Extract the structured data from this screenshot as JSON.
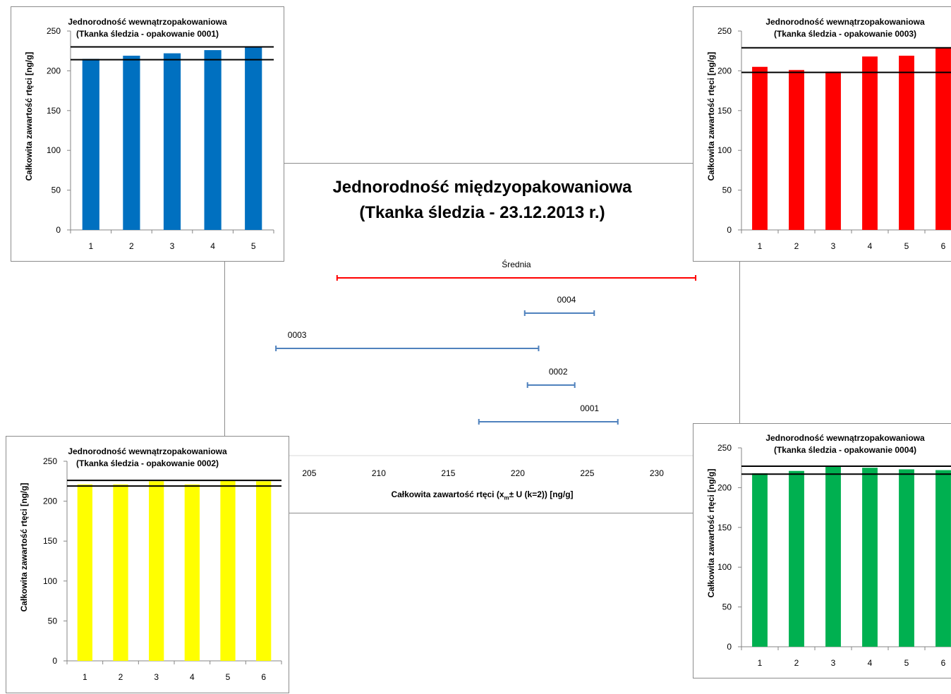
{
  "main": {
    "title_line1": "Jednorodność międzyopakowaniowa",
    "title_line2": "(Tkanka śledzia - 23.12.2013 r.)",
    "xlabel": "Całkowita zawartość rtęci (xm± U (k=2)) [ng/g]",
    "xlabel_pre": "Całkowita zawartość rtęci (x",
    "xlabel_sub": "m",
    "xlabel_post": "± U (k=2)) [ng/g]"
  },
  "chart_data": [
    {
      "id": "main",
      "type": "errorbar",
      "title": "Jednorodność międzyopakowaniowa (Tkanka śledzia - 23.12.2013 r.)",
      "xlabel": "Całkowita zawartość rtęci (xm± U (k=2)) [ng/g]",
      "x_ticks": [
        205,
        210,
        215,
        220,
        225,
        230
      ],
      "xlim": [
        203,
        233
      ],
      "series": [
        {
          "name": "Średnia",
          "low": 207.0,
          "high": 232.8,
          "color": "#ff0000"
        },
        {
          "name": "0004",
          "low": 220.5,
          "high": 225.5,
          "color": "#4f81bd"
        },
        {
          "name": "0003",
          "low": 202.6,
          "high": 221.5,
          "color": "#4f81bd"
        },
        {
          "name": "0002",
          "low": 220.7,
          "high": 224.1,
          "color": "#4f81bd"
        },
        {
          "name": "0001",
          "low": 217.2,
          "high": 227.2,
          "color": "#4f81bd"
        }
      ]
    },
    {
      "id": "p0001",
      "type": "bar",
      "title_line1": "Jednorodność wewnątrzopakowaniowa",
      "title_line2": "(Tkanka śledzia - opakowanie 0001)",
      "ylabel": "Całkowita zawartość rtęci [ng/g]",
      "categories": [
        "1",
        "2",
        "3",
        "4",
        "5"
      ],
      "values": [
        215,
        219,
        222,
        226,
        230
      ],
      "ylim": [
        0,
        250
      ],
      "y_ticks": [
        0,
        50,
        100,
        150,
        200,
        250
      ],
      "limits": [
        214,
        230
      ],
      "color": "#0070c0"
    },
    {
      "id": "p0003",
      "type": "bar",
      "title_line1": "Jednorodność wewnątrzopakowaniowa",
      "title_line2": "(Tkanka śledzia - opakowanie 0003)",
      "ylabel": "Całkowita zawartość rtęci [ng/g]",
      "categories": [
        "1",
        "2",
        "3",
        "4",
        "5",
        "6"
      ],
      "values": [
        205,
        201,
        199,
        218,
        219,
        229
      ],
      "ylim": [
        0,
        250
      ],
      "y_ticks": [
        0,
        50,
        100,
        150,
        200,
        250
      ],
      "limits": [
        198,
        229
      ],
      "color": "#ff0000"
    },
    {
      "id": "p0002",
      "type": "bar",
      "title_line1": "Jednorodność wewnątrzopakowaniowa",
      "title_line2": "(Tkanka śledzia - opakowanie 0002)",
      "ylabel": "Całkowita zawartość rtęci [ng/g]",
      "categories": [
        "1",
        "2",
        "3",
        "4",
        "5",
        "6"
      ],
      "values": [
        221,
        221,
        225,
        221,
        226,
        225
      ],
      "ylim": [
        0,
        250
      ],
      "y_ticks": [
        0,
        50,
        100,
        150,
        200,
        250
      ],
      "limits": [
        219,
        226
      ],
      "color": "#ffff00"
    },
    {
      "id": "p0004",
      "type": "bar",
      "title_line1": "Jednorodność wewnątrzopakowaniowa",
      "title_line2": "(Tkanka śledzia - opakowanie 0004)",
      "ylabel": "Całkowita zawartość rtęci [ng/g]",
      "categories": [
        "1",
        "2",
        "3",
        "4",
        "5",
        "6"
      ],
      "values": [
        218,
        221,
        227,
        225,
        223,
        222
      ],
      "ylim": [
        0,
        250
      ],
      "y_ticks": [
        0,
        50,
        100,
        150,
        200,
        250
      ],
      "limits": [
        217,
        227
      ],
      "color": "#00b050"
    }
  ]
}
